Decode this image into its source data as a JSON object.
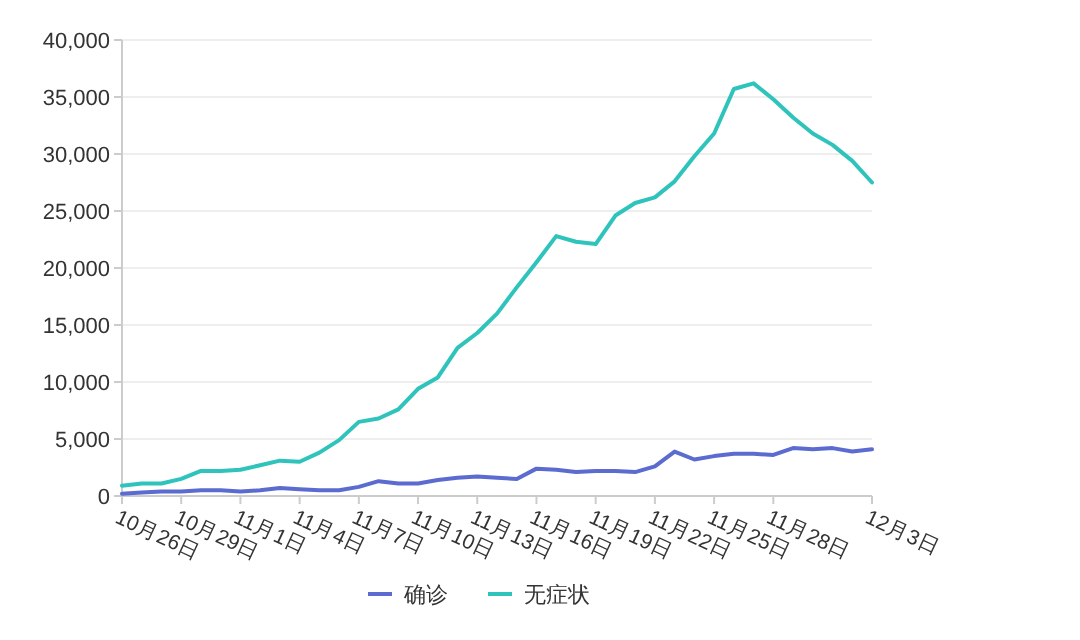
{
  "chart_data": {
    "type": "line",
    "categories": [
      "10月26日",
      null,
      null,
      "10月29日",
      null,
      null,
      "11月1日",
      null,
      null,
      "11月4日",
      null,
      null,
      "11月7日",
      null,
      null,
      "11月10日",
      null,
      null,
      "11月13日",
      null,
      null,
      "11月16日",
      null,
      null,
      "11月19日",
      null,
      null,
      "11月22日",
      null,
      null,
      "11月25日",
      null,
      null,
      "11月28日",
      null,
      null,
      null,
      null,
      "12月3日"
    ],
    "series": [
      {
        "name": "确诊",
        "color": "#5b6bd0",
        "values": [
          200,
          300,
          400,
          400,
          500,
          500,
          400,
          500,
          700,
          600,
          500,
          500,
          800,
          1300,
          1100,
          1100,
          1400,
          1600,
          1700,
          1600,
          1500,
          2400,
          2300,
          2100,
          2200,
          2200,
          2100,
          2600,
          3900,
          3200,
          3500,
          3700,
          3700,
          3600,
          4200,
          4100,
          4200,
          3900,
          4100
        ]
      },
      {
        "name": "无症状",
        "color": "#2ec4bc",
        "values": [
          900,
          1100,
          1100,
          1500,
          2200,
          2200,
          2300,
          2700,
          3100,
          3000,
          3800,
          4900,
          6500,
          6800,
          7600,
          9400,
          10400,
          13000,
          14300,
          16000,
          18300,
          20500,
          22800,
          22300,
          22100,
          24600,
          25700,
          26200,
          27600,
          29800,
          31800,
          35700,
          36200,
          34800,
          33200,
          31800,
          30800,
          29400,
          27500
        ]
      }
    ],
    "ylim": [
      0,
      40000
    ],
    "yticks": [
      0,
      {
        "value": 5000,
        "label": "5,000"
      },
      {
        "value": 10000,
        "label": "10,000"
      },
      {
        "value": 15000,
        "label": "15,000"
      },
      {
        "value": 20000,
        "label": "20,000"
      },
      {
        "value": 25000,
        "label": "25,000"
      },
      {
        "value": 30000,
        "label": "30,000"
      },
      {
        "value": 35000,
        "label": "35,000"
      },
      {
        "value": 40000,
        "label": "40,000"
      }
    ],
    "grid": "y",
    "legend": "bottom"
  }
}
